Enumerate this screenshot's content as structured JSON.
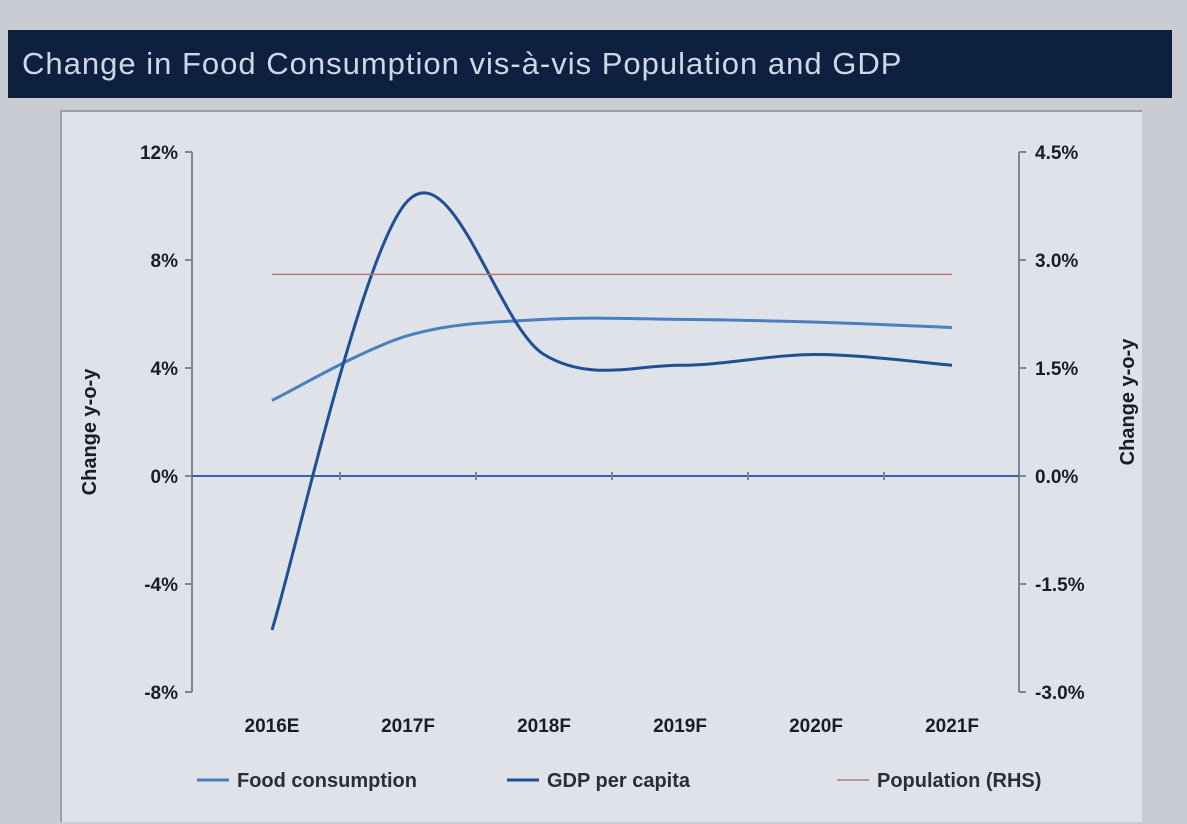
{
  "chart_data": {
    "type": "line",
    "title": "Change in Food Consumption vis-à-vis Population and GDP",
    "categories": [
      "2016E",
      "2017F",
      "2018F",
      "2019F",
      "2020F",
      "2021F"
    ],
    "ylabel": "Change y-o-y",
    "y2label": "Change y-o-y",
    "ylim": [
      -8,
      12
    ],
    "y2lim": [
      -3.0,
      4.5
    ],
    "yticks": [
      "-8%",
      "-4%",
      "0%",
      "4%",
      "8%",
      "12%"
    ],
    "y2ticks": [
      "-3.0%",
      "-1.5%",
      "0.0%",
      "1.5%",
      "3.0%",
      "4.5%"
    ],
    "legend_position": "bottom",
    "series": [
      {
        "name": "Food consumption",
        "axis": "left",
        "color": "#4a7fc0",
        "values": [
          2.8,
          5.2,
          5.8,
          5.8,
          5.7,
          5.5
        ]
      },
      {
        "name": "GDP per capita",
        "axis": "left",
        "color": "#1f4f95",
        "values": [
          -5.7,
          10.2,
          4.5,
          4.1,
          4.5,
          4.1
        ]
      },
      {
        "name": "Population (RHS)",
        "axis": "right",
        "color": "#b87878",
        "values": [
          2.8,
          2.8,
          2.8,
          2.8,
          2.8,
          2.8
        ]
      }
    ]
  }
}
